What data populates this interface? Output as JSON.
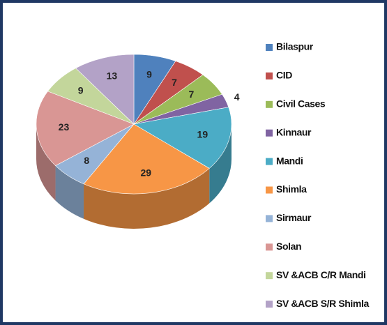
{
  "chart_data": {
    "type": "pie3d",
    "categories": [
      "Bilaspur",
      "CID",
      "Civil Cases",
      "Kinnaur",
      "Mandi",
      "Shimla",
      "Sirmaur",
      "Solan",
      "SV &ACB C/R Mandi",
      "SV &ACB S/R Shimla"
    ],
    "values": [
      9,
      7,
      7,
      4,
      19,
      29,
      8,
      23,
      9,
      13
    ],
    "colors": [
      "#4f81bd",
      "#c0504d",
      "#9bbb59",
      "#8064a2",
      "#4bacc6",
      "#f79646",
      "#95b3d7",
      "#d99694",
      "#c3d69b",
      "#b3a2c7"
    ],
    "legend": "right"
  }
}
